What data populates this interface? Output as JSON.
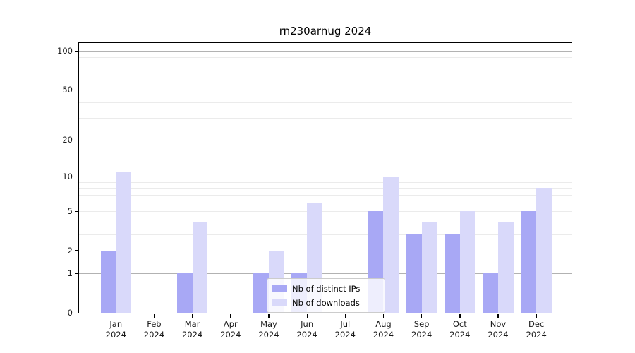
{
  "chart_data": {
    "type": "bar",
    "title": "rn230arnug 2024",
    "x_categories": [
      {
        "month": "Jan",
        "year": "2024"
      },
      {
        "month": "Feb",
        "year": "2024"
      },
      {
        "month": "Mar",
        "year": "2024"
      },
      {
        "month": "Apr",
        "year": "2024"
      },
      {
        "month": "May",
        "year": "2024"
      },
      {
        "month": "Jun",
        "year": "2024"
      },
      {
        "month": "Jul",
        "year": "2024"
      },
      {
        "month": "Aug",
        "year": "2024"
      },
      {
        "month": "Sep",
        "year": "2024"
      },
      {
        "month": "Oct",
        "year": "2024"
      },
      {
        "month": "Nov",
        "year": "2024"
      },
      {
        "month": "Dec",
        "year": "2024"
      }
    ],
    "series": [
      {
        "name": "Nb of distinct IPs",
        "color": "#a8a8f5",
        "values": [
          2,
          0,
          1,
          0,
          1,
          1,
          0,
          5,
          3,
          3,
          1,
          5
        ]
      },
      {
        "name": "Nb of downloads",
        "color": "#d9d9fa",
        "values": [
          11,
          0,
          4,
          0,
          2,
          6,
          0,
          10,
          4,
          5,
          4,
          8
        ]
      }
    ],
    "yscale": "log1p",
    "y_ticks": [
      0,
      1,
      2,
      5,
      10,
      20,
      50,
      100
    ],
    "y_major_gridlines": [
      1,
      10,
      100
    ],
    "y_minor_gridlines": [
      2,
      3,
      4,
      5,
      6,
      7,
      8,
      9,
      20,
      30,
      40,
      50,
      60,
      70,
      80,
      90
    ],
    "ylim": [
      0,
      115
    ],
    "grid": true,
    "legend_position": "lower center",
    "colors": {
      "major_grid": "#b2b2b2",
      "minor_grid": "#ebebeb",
      "spine": "#000000",
      "background": "#ffffff"
    }
  }
}
